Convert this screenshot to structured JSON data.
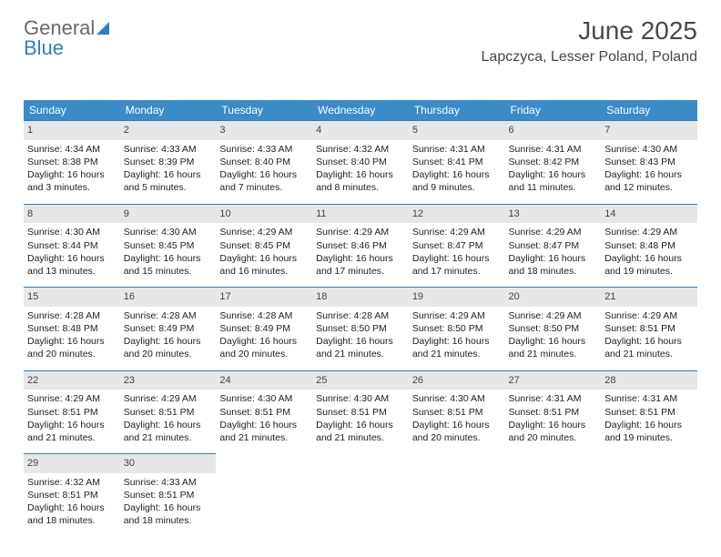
{
  "logo": {
    "text_gray": "General",
    "text_blue": "Blue"
  },
  "title": "June 2025",
  "location": "Lapczyca, Lesser Poland, Poland",
  "colors": {
    "header_bg": "#3b8bc8",
    "header_text": "#ffffff",
    "daynum_bg": "#e7e7e7",
    "cell_border": "#2f7fbf",
    "logo_gray": "#6a6a6a",
    "logo_blue": "#2f7fbf",
    "body_text": "#222222",
    "title_text": "#484848"
  },
  "typography": {
    "month_title_pt": 28,
    "location_pt": 16,
    "weekday_header_pt": 12,
    "daynum_pt": 11,
    "cell_text_pt": 10.5
  },
  "weekdays": [
    "Sunday",
    "Monday",
    "Tuesday",
    "Wednesday",
    "Thursday",
    "Friday",
    "Saturday"
  ],
  "weeks": [
    [
      {
        "day": "1",
        "sunrise": "Sunrise: 4:34 AM",
        "sunset": "Sunset: 8:38 PM",
        "daylight": "Daylight: 16 hours and 3 minutes."
      },
      {
        "day": "2",
        "sunrise": "Sunrise: 4:33 AM",
        "sunset": "Sunset: 8:39 PM",
        "daylight": "Daylight: 16 hours and 5 minutes."
      },
      {
        "day": "3",
        "sunrise": "Sunrise: 4:33 AM",
        "sunset": "Sunset: 8:40 PM",
        "daylight": "Daylight: 16 hours and 7 minutes."
      },
      {
        "day": "4",
        "sunrise": "Sunrise: 4:32 AM",
        "sunset": "Sunset: 8:40 PM",
        "daylight": "Daylight: 16 hours and 8 minutes."
      },
      {
        "day": "5",
        "sunrise": "Sunrise: 4:31 AM",
        "sunset": "Sunset: 8:41 PM",
        "daylight": "Daylight: 16 hours and 9 minutes."
      },
      {
        "day": "6",
        "sunrise": "Sunrise: 4:31 AM",
        "sunset": "Sunset: 8:42 PM",
        "daylight": "Daylight: 16 hours and 11 minutes."
      },
      {
        "day": "7",
        "sunrise": "Sunrise: 4:30 AM",
        "sunset": "Sunset: 8:43 PM",
        "daylight": "Daylight: 16 hours and 12 minutes."
      }
    ],
    [
      {
        "day": "8",
        "sunrise": "Sunrise: 4:30 AM",
        "sunset": "Sunset: 8:44 PM",
        "daylight": "Daylight: 16 hours and 13 minutes."
      },
      {
        "day": "9",
        "sunrise": "Sunrise: 4:30 AM",
        "sunset": "Sunset: 8:45 PM",
        "daylight": "Daylight: 16 hours and 15 minutes."
      },
      {
        "day": "10",
        "sunrise": "Sunrise: 4:29 AM",
        "sunset": "Sunset: 8:45 PM",
        "daylight": "Daylight: 16 hours and 16 minutes."
      },
      {
        "day": "11",
        "sunrise": "Sunrise: 4:29 AM",
        "sunset": "Sunset: 8:46 PM",
        "daylight": "Daylight: 16 hours and 17 minutes."
      },
      {
        "day": "12",
        "sunrise": "Sunrise: 4:29 AM",
        "sunset": "Sunset: 8:47 PM",
        "daylight": "Daylight: 16 hours and 17 minutes."
      },
      {
        "day": "13",
        "sunrise": "Sunrise: 4:29 AM",
        "sunset": "Sunset: 8:47 PM",
        "daylight": "Daylight: 16 hours and 18 minutes."
      },
      {
        "day": "14",
        "sunrise": "Sunrise: 4:29 AM",
        "sunset": "Sunset: 8:48 PM",
        "daylight": "Daylight: 16 hours and 19 minutes."
      }
    ],
    [
      {
        "day": "15",
        "sunrise": "Sunrise: 4:28 AM",
        "sunset": "Sunset: 8:48 PM",
        "daylight": "Daylight: 16 hours and 20 minutes."
      },
      {
        "day": "16",
        "sunrise": "Sunrise: 4:28 AM",
        "sunset": "Sunset: 8:49 PM",
        "daylight": "Daylight: 16 hours and 20 minutes."
      },
      {
        "day": "17",
        "sunrise": "Sunrise: 4:28 AM",
        "sunset": "Sunset: 8:49 PM",
        "daylight": "Daylight: 16 hours and 20 minutes."
      },
      {
        "day": "18",
        "sunrise": "Sunrise: 4:28 AM",
        "sunset": "Sunset: 8:50 PM",
        "daylight": "Daylight: 16 hours and 21 minutes."
      },
      {
        "day": "19",
        "sunrise": "Sunrise: 4:29 AM",
        "sunset": "Sunset: 8:50 PM",
        "daylight": "Daylight: 16 hours and 21 minutes."
      },
      {
        "day": "20",
        "sunrise": "Sunrise: 4:29 AM",
        "sunset": "Sunset: 8:50 PM",
        "daylight": "Daylight: 16 hours and 21 minutes."
      },
      {
        "day": "21",
        "sunrise": "Sunrise: 4:29 AM",
        "sunset": "Sunset: 8:51 PM",
        "daylight": "Daylight: 16 hours and 21 minutes."
      }
    ],
    [
      {
        "day": "22",
        "sunrise": "Sunrise: 4:29 AM",
        "sunset": "Sunset: 8:51 PM",
        "daylight": "Daylight: 16 hours and 21 minutes."
      },
      {
        "day": "23",
        "sunrise": "Sunrise: 4:29 AM",
        "sunset": "Sunset: 8:51 PM",
        "daylight": "Daylight: 16 hours and 21 minutes."
      },
      {
        "day": "24",
        "sunrise": "Sunrise: 4:30 AM",
        "sunset": "Sunset: 8:51 PM",
        "daylight": "Daylight: 16 hours and 21 minutes."
      },
      {
        "day": "25",
        "sunrise": "Sunrise: 4:30 AM",
        "sunset": "Sunset: 8:51 PM",
        "daylight": "Daylight: 16 hours and 21 minutes."
      },
      {
        "day": "26",
        "sunrise": "Sunrise: 4:30 AM",
        "sunset": "Sunset: 8:51 PM",
        "daylight": "Daylight: 16 hours and 20 minutes."
      },
      {
        "day": "27",
        "sunrise": "Sunrise: 4:31 AM",
        "sunset": "Sunset: 8:51 PM",
        "daylight": "Daylight: 16 hours and 20 minutes."
      },
      {
        "day": "28",
        "sunrise": "Sunrise: 4:31 AM",
        "sunset": "Sunset: 8:51 PM",
        "daylight": "Daylight: 16 hours and 19 minutes."
      }
    ],
    [
      {
        "day": "29",
        "sunrise": "Sunrise: 4:32 AM",
        "sunset": "Sunset: 8:51 PM",
        "daylight": "Daylight: 16 hours and 18 minutes."
      },
      {
        "day": "30",
        "sunrise": "Sunrise: 4:33 AM",
        "sunset": "Sunset: 8:51 PM",
        "daylight": "Daylight: 16 hours and 18 minutes."
      },
      null,
      null,
      null,
      null,
      null
    ]
  ]
}
